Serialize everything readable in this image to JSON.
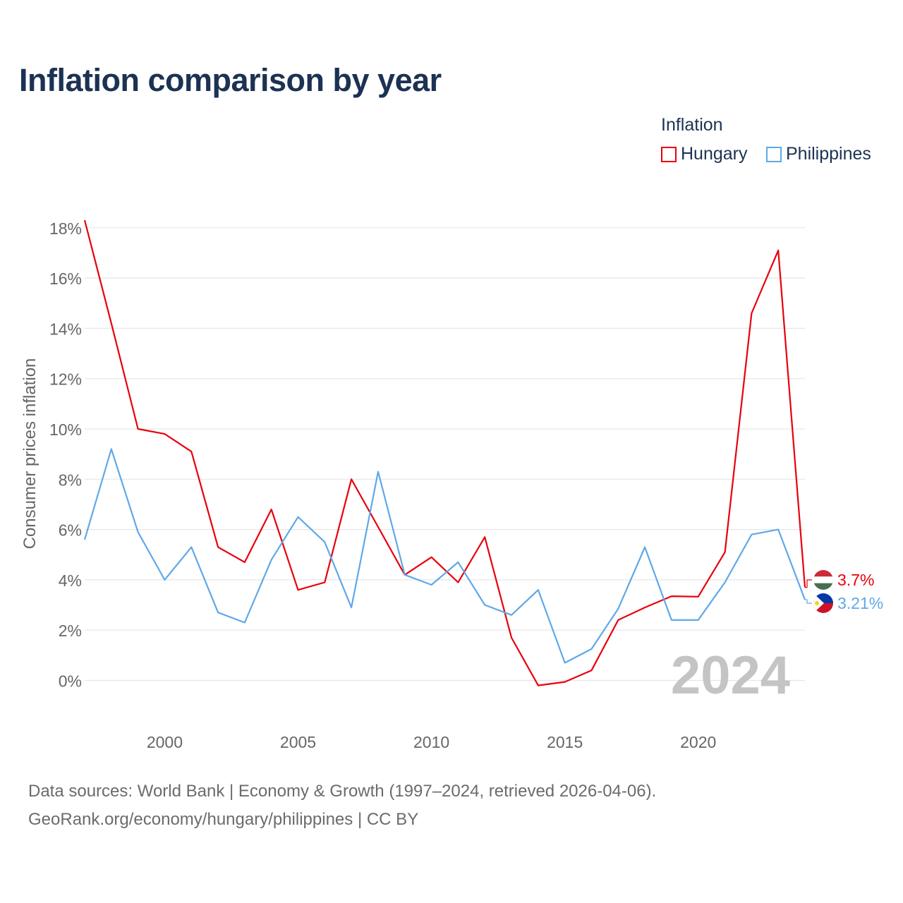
{
  "title": "Inflation comparison by year",
  "legend": {
    "title": "Inflation",
    "items": [
      {
        "label": "Hungary",
        "color": "#e8000b"
      },
      {
        "label": "Philippines",
        "color": "#5fa8e8"
      }
    ]
  },
  "chart_data": {
    "type": "line",
    "title": "Inflation comparison by year",
    "xlabel": "",
    "ylabel": "Consumer prices inflation",
    "x": [
      1997,
      1998,
      1999,
      2000,
      2001,
      2002,
      2003,
      2004,
      2005,
      2006,
      2007,
      2008,
      2009,
      2010,
      2011,
      2012,
      2013,
      2014,
      2015,
      2016,
      2017,
      2018,
      2019,
      2020,
      2021,
      2022,
      2023,
      2024
    ],
    "series": [
      {
        "name": "Hungary",
        "color": "#e8000b",
        "values": [
          18.3,
          14.2,
          10.0,
          9.8,
          9.1,
          5.3,
          4.7,
          6.8,
          3.6,
          3.9,
          8.0,
          6.1,
          4.2,
          4.9,
          3.9,
          5.7,
          1.7,
          -0.2,
          -0.06,
          0.4,
          2.4,
          2.9,
          3.35,
          3.33,
          5.1,
          14.6,
          17.1,
          3.7
        ]
      },
      {
        "name": "Philippines",
        "color": "#5fa8e8",
        "values": [
          5.6,
          9.2,
          5.9,
          4.0,
          5.3,
          2.7,
          2.3,
          4.8,
          6.5,
          5.5,
          2.9,
          8.3,
          4.2,
          3.8,
          4.7,
          3.0,
          2.6,
          3.6,
          0.7,
          1.25,
          2.85,
          5.3,
          2.4,
          2.4,
          3.9,
          5.8,
          6.0,
          3.21
        ]
      }
    ],
    "ylim": [
      -1.5,
      18.6
    ],
    "yticks": [
      0,
      2,
      4,
      6,
      8,
      10,
      12,
      14,
      16,
      18
    ],
    "ytick_labels": [
      "0%",
      "2%",
      "4%",
      "6%",
      "8%",
      "10%",
      "12%",
      "14%",
      "16%",
      "18%"
    ],
    "xticks": [
      2000,
      2005,
      2010,
      2015,
      2020
    ],
    "xtick_labels": [
      "2000",
      "2005",
      "2010",
      "2015",
      "2020"
    ],
    "grid": true,
    "year_watermark": "2024",
    "end_labels": [
      {
        "series": "Hungary",
        "text": "3.7%",
        "flag": "hungary-flag-icon"
      },
      {
        "series": "Philippines",
        "text": "3.21%",
        "flag": "philippines-flag-icon"
      }
    ]
  },
  "footer": {
    "line1": "Data sources: World Bank | Economy & Growth (1997–2024, retrieved 2026-04-06).",
    "line2": "GeoRank.org/economy/hungary/philippines | CC BY"
  }
}
